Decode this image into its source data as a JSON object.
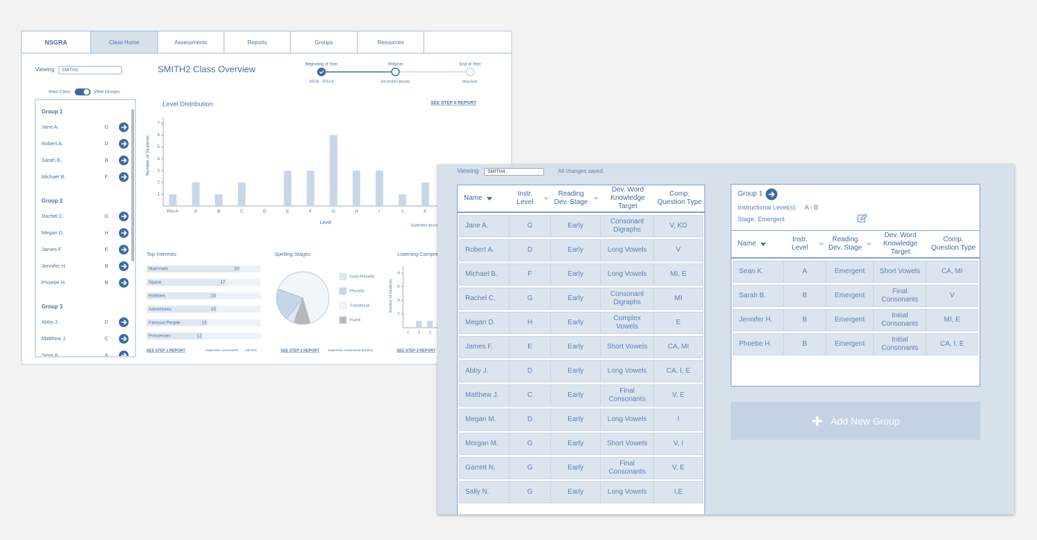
{
  "nav": [
    "NSGRA",
    "Class Home",
    "Assessments",
    "Reports",
    "Groups",
    "Resources"
  ],
  "nav_active": 1,
  "class_overview": {
    "viewing_label": "Viewing",
    "class_select": "SMITH2",
    "title": "SMITH2 Class Overview",
    "timeline": [
      {
        "label": "Beginning of Year",
        "dates": "9/5/18 - 9/15/18",
        "status": "done"
      },
      {
        "label": "Midyear",
        "dates": "December/January",
        "status": "current"
      },
      {
        "label": "End of Year",
        "dates": "May/June",
        "status": "future"
      }
    ],
    "toggle": {
      "left": "View Class",
      "right": "View Groups"
    },
    "groups": [
      {
        "name": "Group 1",
        "students": [
          {
            "name": "Jane A.",
            "level": "G"
          },
          {
            "name": "Robert A.",
            "level": "D"
          },
          {
            "name": "Sarah B.",
            "level": "B"
          },
          {
            "name": "Michael B.",
            "level": "F"
          }
        ]
      },
      {
        "name": "Group 2",
        "students": [
          {
            "name": "Rachel C.",
            "level": "G"
          },
          {
            "name": "Megan D.",
            "level": "H"
          },
          {
            "name": "James F.",
            "level": "E"
          },
          {
            "name": "Jennifer H.",
            "level": "B"
          },
          {
            "name": "Phoebe H.",
            "level": "B"
          }
        ]
      },
      {
        "name": "Group 3",
        "students": [
          {
            "name": "Abby J.",
            "level": "D"
          },
          {
            "name": "Matthew J.",
            "level": "C"
          },
          {
            "name": "Sean K.",
            "level": "A"
          }
        ]
      }
    ],
    "level_distribution": {
      "type": "bar",
      "title": "Level Distribution",
      "link": "SEE STEP 4 REPORT",
      "y_label": "Number of Students",
      "x_label": "Level",
      "note": "September Assessment",
      "categories": [
        "Pre-A",
        "A",
        "B",
        "C",
        "D",
        "E",
        "F",
        "G",
        "H",
        "I",
        "J",
        "K"
      ],
      "values": [
        1,
        2,
        1,
        2,
        0,
        3,
        3,
        6,
        3,
        3,
        1,
        2
      ],
      "ylim": [
        0,
        7.5
      ],
      "yticks": [
        1,
        2,
        3,
        4,
        5,
        6,
        7
      ],
      "color": "#c8d7e8"
    },
    "top_interests": {
      "type": "bar",
      "orientation": "horizontal",
      "title": "Top Interests",
      "categories": [
        "Mammals",
        "Space",
        "Hobbies",
        "Adventures",
        "Famous People",
        "Princesses"
      ],
      "values": [
        20,
        17,
        15,
        15,
        13,
        12
      ],
      "link": "SEE STEP 1 REPORT",
      "note": "September Assessment",
      "note_dates": "9/5-9/15",
      "color": "#dfe7f0"
    },
    "spelling_stages": {
      "type": "pie",
      "title": "Spelling Stages",
      "categories": [
        "Early-Phonetic",
        "Phonetic",
        "Transitional",
        "Fluent"
      ],
      "values": [
        5,
        20,
        65,
        10
      ],
      "colors": [
        "#dfe8f2",
        "#c6d6e8",
        "#f2f5f9",
        "#b8b8b8"
      ],
      "link": "SEE STEP 2 REPORT",
      "note": "September Assessment 9/5-9/15"
    },
    "listening": {
      "type": "bar",
      "title": "Listening Comprehension",
      "y_label": "Number of Students",
      "categories": [
        "1",
        "2",
        "3"
      ],
      "values": [
        0,
        1,
        1
      ],
      "ylim": [
        0,
        9
      ],
      "yticks": [
        2,
        4,
        6,
        8
      ],
      "color": "#c8d7e8",
      "link": "SEE STEP 3 REPORT"
    }
  },
  "grouping": {
    "viewing_label": "Viewing",
    "class_select": "SMITH4",
    "status": "All changes saved.",
    "columns": [
      "Name",
      "Instr. Level",
      "Reading Dev. Stage",
      "Dev. Word Knowledge Target",
      "Comp. Question Type"
    ],
    "students": [
      [
        "Jane A.",
        "G",
        "Early",
        "Consonant Digraphs",
        "V, KD"
      ],
      [
        "Robert A.",
        "D",
        "Early",
        "Long Vowels",
        "V"
      ],
      [
        "Michael B.",
        "F",
        "Early",
        "Long Vowels",
        "MI, E"
      ],
      [
        "Rachel C.",
        "G",
        "Early",
        "Consonant Digraphs",
        "MI"
      ],
      [
        "Megan D.",
        "H",
        "Early",
        "Complex Vowels",
        "E"
      ],
      [
        "James F.",
        "E",
        "Early",
        "Short Vowels",
        "CA, MI"
      ],
      [
        "Abby J.",
        "D",
        "Early",
        "Long Vowels",
        "CA, I, E"
      ],
      [
        "Matthew J.",
        "C",
        "Early",
        "Final Consonants",
        "V, E"
      ],
      [
        "Megan M.",
        "D",
        "Early",
        "Long Vowels",
        "I"
      ],
      [
        "Morgan M.",
        "G",
        "Early",
        "Short Vowels",
        "V, I"
      ],
      [
        "Garrett N.",
        "G",
        "Early",
        "Final Consonants",
        "V, E"
      ],
      [
        "Sally N.",
        "G",
        "Early",
        "Long Vowels",
        "I,E"
      ]
    ],
    "group": {
      "name": "Group 1",
      "levels_label": "Instructional Level(s):",
      "levels": "A - B",
      "stage_label": "Stage:",
      "stage": "Emergent",
      "students": [
        [
          "Sean K.",
          "A",
          "Emergent",
          "Short Vowels",
          "CA, MI"
        ],
        [
          "Sarah B.",
          "B",
          "Emergent",
          "Final Consonants",
          "V"
        ],
        [
          "Jennifer H.",
          "B",
          "Emergent",
          "Initial Consonants",
          "MI, E"
        ],
        [
          "Phoebe H.",
          "B",
          "Emergent",
          "Initial Consonants",
          "CA, I, E"
        ]
      ]
    },
    "add_button": "Add New Group"
  }
}
